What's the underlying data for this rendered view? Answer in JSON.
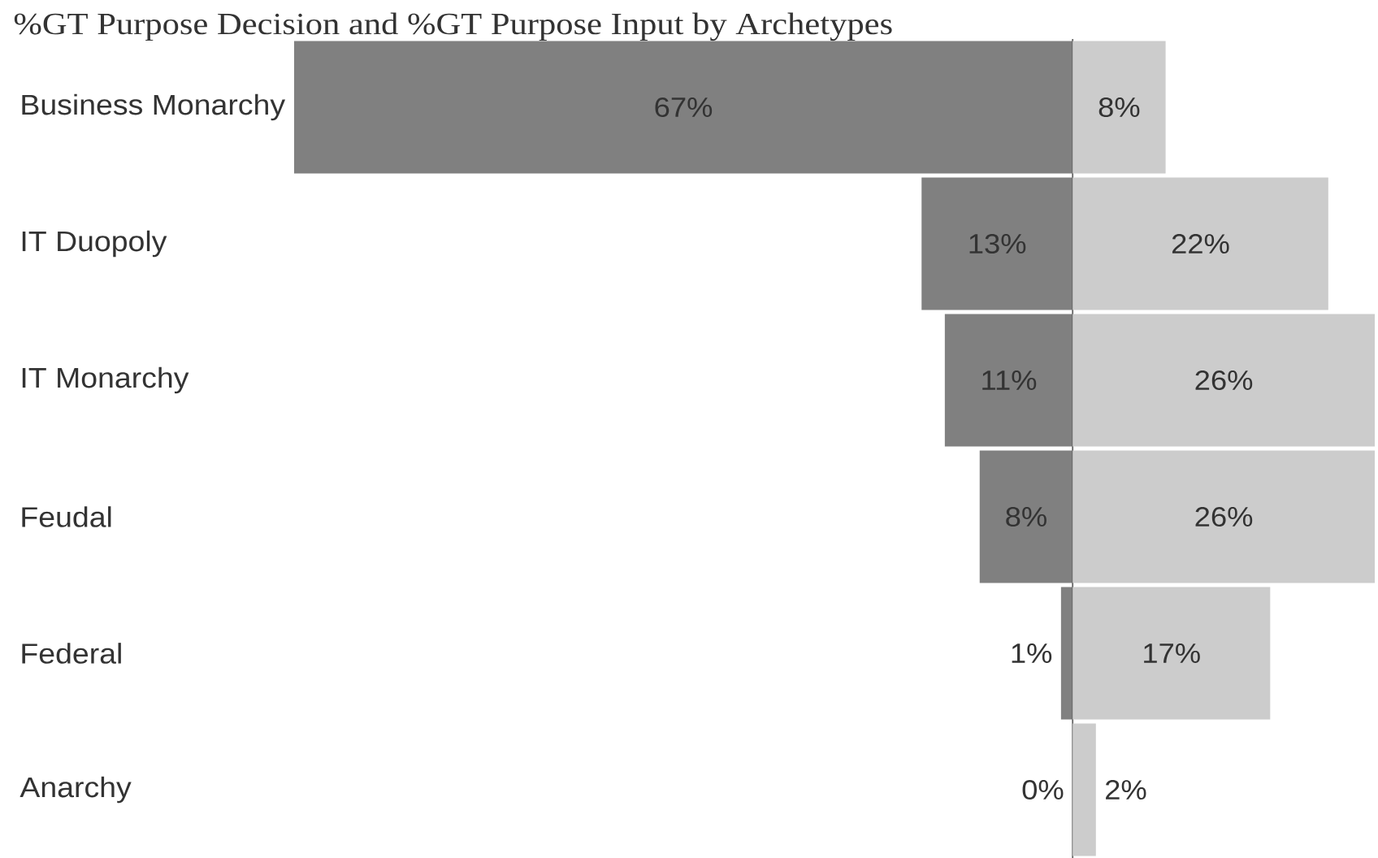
{
  "chart_data": [
    {
      "type": "bar",
      "orientation": "horizontal",
      "title": "%GT Purpose Decision and %GT Purpose Input by Archetypes",
      "categories": [
        "Business Monarchy",
        "IT Duopoly",
        "IT Monarchy",
        "Feudal",
        "Federal",
        "Anarchy"
      ],
      "series": [
        {
          "color": "#808080",
          "values": [
            67,
            13,
            11,
            8,
            1,
            0
          ],
          "value_labels": [
            "67%",
            "13%",
            "11%",
            "8%",
            "1%",
            "0%"
          ]
        }
      ],
      "xlim": [
        67,
        0
      ]
    },
    {
      "type": "bar",
      "orientation": "horizontal",
      "categories": [
        null,
        null,
        null,
        null,
        null,
        null
      ],
      "series": [
        {
          "color": "#cccccc",
          "values": [
            8,
            22,
            26,
            26,
            17,
            2
          ],
          "value_labels": [
            "8%",
            "22%",
            "26%",
            "26%",
            "17%",
            "2%"
          ]
        }
      ],
      "xlim": [
        0,
        26
      ]
    }
  ]
}
